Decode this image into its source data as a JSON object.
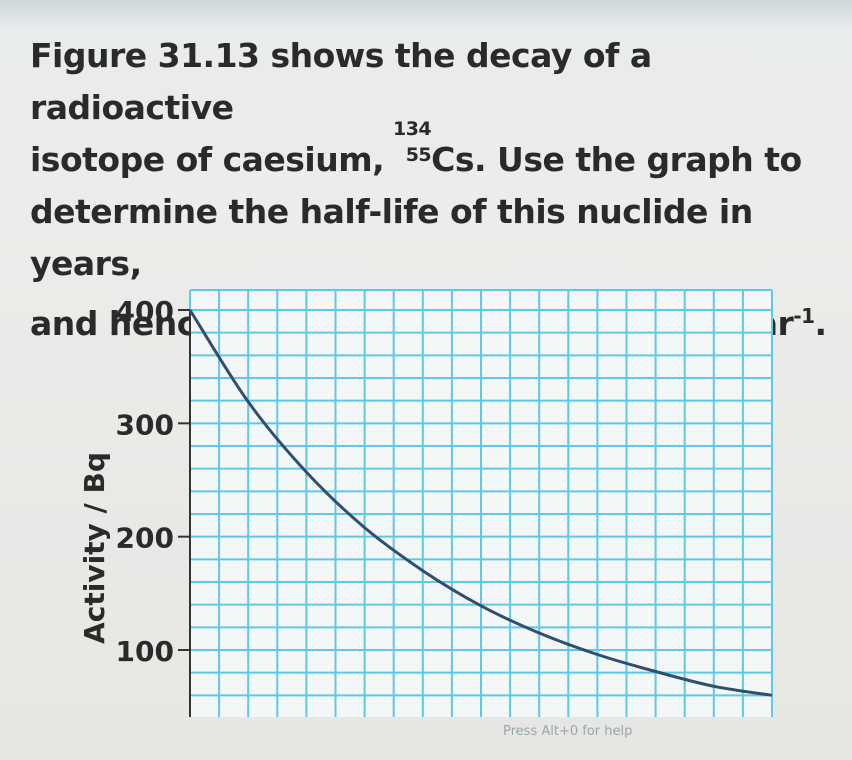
{
  "question": {
    "line1": "Figure 31.13 shows the decay of a radioactive",
    "line2_pre": "isotope of caesium, ",
    "mass_number": "134",
    "atomic_number": "55",
    "element": "Cs",
    "line2_post": ". Use the graph to",
    "line3": "determine the half-life of this nuclide in years,",
    "line4_pre": "and hence find the decay constant in year",
    "line4_sup": "-1",
    "line4_post": "."
  },
  "help_text": "Press Alt+0 for help",
  "colors": {
    "grid": "#5fc7e8",
    "curve": "#2f4f6f",
    "axis_text": "#2a2a2a"
  },
  "chart_data": {
    "type": "line",
    "title": "",
    "xlabel": "",
    "ylabel": "Activity / Bq",
    "ylim": [
      50,
      400
    ],
    "y_ticks": [
      100,
      200,
      300,
      400
    ],
    "y_tick_labels": [
      "100",
      "200",
      "300",
      "400"
    ],
    "xlim": [
      0,
      20
    ],
    "grid": true,
    "series": [
      {
        "x": [
          0,
          2,
          4,
          6,
          8,
          10,
          12,
          14,
          16,
          18,
          20
        ],
        "values": [
          400,
          319,
          257,
          208,
          170,
          139,
          115,
          96,
          81,
          68,
          60
        ]
      }
    ]
  }
}
